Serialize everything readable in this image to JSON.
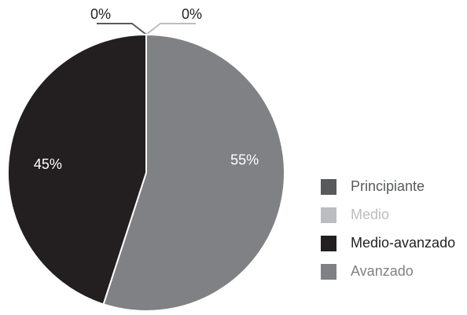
{
  "chart_data": {
    "type": "pie",
    "categories": [
      "Principiante",
      "Medio",
      "Medio-avanzado",
      "Avanzado"
    ],
    "values": [
      0,
      0,
      45,
      55
    ],
    "value_labels": [
      "0%",
      "0%",
      "45%",
      "55%"
    ],
    "colors": [
      "#58595b",
      "#bcbdc0",
      "#231f20",
      "#808184"
    ],
    "legend": "right"
  }
}
